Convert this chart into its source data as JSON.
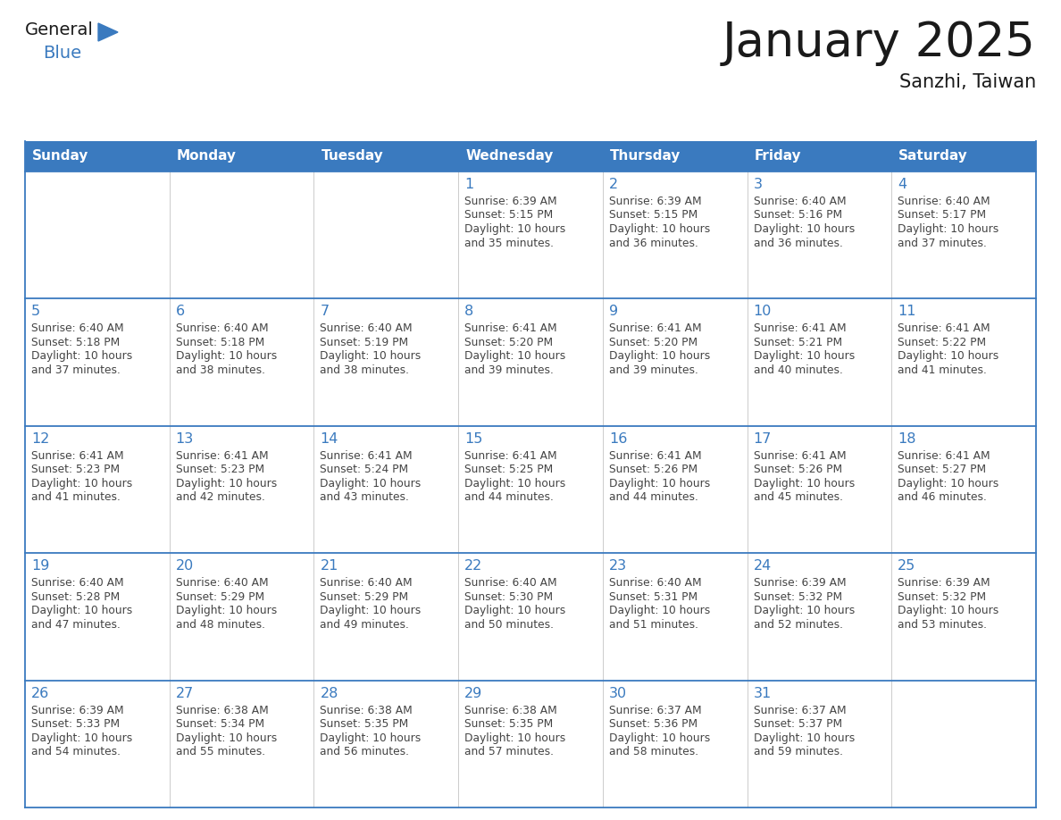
{
  "title": "January 2025",
  "subtitle": "Sanzhi, Taiwan",
  "header_color": "#3a7abf",
  "header_text_color": "#ffffff",
  "grid_line_color": "#3a7abf",
  "day_headers": [
    "Sunday",
    "Monday",
    "Tuesday",
    "Wednesday",
    "Thursday",
    "Friday",
    "Saturday"
  ],
  "title_color": "#1a1a1a",
  "subtitle_color": "#1a1a1a",
  "day_num_color": "#3a7abf",
  "text_color": "#444444",
  "calendar": [
    [
      null,
      null,
      null,
      {
        "day": 1,
        "sunrise": "6:39 AM",
        "sunset": "5:15 PM",
        "daylight": "10 hours and 35 minutes."
      },
      {
        "day": 2,
        "sunrise": "6:39 AM",
        "sunset": "5:15 PM",
        "daylight": "10 hours and 36 minutes."
      },
      {
        "day": 3,
        "sunrise": "6:40 AM",
        "sunset": "5:16 PM",
        "daylight": "10 hours and 36 minutes."
      },
      {
        "day": 4,
        "sunrise": "6:40 AM",
        "sunset": "5:17 PM",
        "daylight": "10 hours and 37 minutes."
      }
    ],
    [
      {
        "day": 5,
        "sunrise": "6:40 AM",
        "sunset": "5:18 PM",
        "daylight": "10 hours and 37 minutes."
      },
      {
        "day": 6,
        "sunrise": "6:40 AM",
        "sunset": "5:18 PM",
        "daylight": "10 hours and 38 minutes."
      },
      {
        "day": 7,
        "sunrise": "6:40 AM",
        "sunset": "5:19 PM",
        "daylight": "10 hours and 38 minutes."
      },
      {
        "day": 8,
        "sunrise": "6:41 AM",
        "sunset": "5:20 PM",
        "daylight": "10 hours and 39 minutes."
      },
      {
        "day": 9,
        "sunrise": "6:41 AM",
        "sunset": "5:20 PM",
        "daylight": "10 hours and 39 minutes."
      },
      {
        "day": 10,
        "sunrise": "6:41 AM",
        "sunset": "5:21 PM",
        "daylight": "10 hours and 40 minutes."
      },
      {
        "day": 11,
        "sunrise": "6:41 AM",
        "sunset": "5:22 PM",
        "daylight": "10 hours and 41 minutes."
      }
    ],
    [
      {
        "day": 12,
        "sunrise": "6:41 AM",
        "sunset": "5:23 PM",
        "daylight": "10 hours and 41 minutes."
      },
      {
        "day": 13,
        "sunrise": "6:41 AM",
        "sunset": "5:23 PM",
        "daylight": "10 hours and 42 minutes."
      },
      {
        "day": 14,
        "sunrise": "6:41 AM",
        "sunset": "5:24 PM",
        "daylight": "10 hours and 43 minutes."
      },
      {
        "day": 15,
        "sunrise": "6:41 AM",
        "sunset": "5:25 PM",
        "daylight": "10 hours and 44 minutes."
      },
      {
        "day": 16,
        "sunrise": "6:41 AM",
        "sunset": "5:26 PM",
        "daylight": "10 hours and 44 minutes."
      },
      {
        "day": 17,
        "sunrise": "6:41 AM",
        "sunset": "5:26 PM",
        "daylight": "10 hours and 45 minutes."
      },
      {
        "day": 18,
        "sunrise": "6:41 AM",
        "sunset": "5:27 PM",
        "daylight": "10 hours and 46 minutes."
      }
    ],
    [
      {
        "day": 19,
        "sunrise": "6:40 AM",
        "sunset": "5:28 PM",
        "daylight": "10 hours and 47 minutes."
      },
      {
        "day": 20,
        "sunrise": "6:40 AM",
        "sunset": "5:29 PM",
        "daylight": "10 hours and 48 minutes."
      },
      {
        "day": 21,
        "sunrise": "6:40 AM",
        "sunset": "5:29 PM",
        "daylight": "10 hours and 49 minutes."
      },
      {
        "day": 22,
        "sunrise": "6:40 AM",
        "sunset": "5:30 PM",
        "daylight": "10 hours and 50 minutes."
      },
      {
        "day": 23,
        "sunrise": "6:40 AM",
        "sunset": "5:31 PM",
        "daylight": "10 hours and 51 minutes."
      },
      {
        "day": 24,
        "sunrise": "6:39 AM",
        "sunset": "5:32 PM",
        "daylight": "10 hours and 52 minutes."
      },
      {
        "day": 25,
        "sunrise": "6:39 AM",
        "sunset": "5:32 PM",
        "daylight": "10 hours and 53 minutes."
      }
    ],
    [
      {
        "day": 26,
        "sunrise": "6:39 AM",
        "sunset": "5:33 PM",
        "daylight": "10 hours and 54 minutes."
      },
      {
        "day": 27,
        "sunrise": "6:38 AM",
        "sunset": "5:34 PM",
        "daylight": "10 hours and 55 minutes."
      },
      {
        "day": 28,
        "sunrise": "6:38 AM",
        "sunset": "5:35 PM",
        "daylight": "10 hours and 56 minutes."
      },
      {
        "day": 29,
        "sunrise": "6:38 AM",
        "sunset": "5:35 PM",
        "daylight": "10 hours and 57 minutes."
      },
      {
        "day": 30,
        "sunrise": "6:37 AM",
        "sunset": "5:36 PM",
        "daylight": "10 hours and 58 minutes."
      },
      {
        "day": 31,
        "sunrise": "6:37 AM",
        "sunset": "5:37 PM",
        "daylight": "10 hours and 59 minutes."
      },
      null
    ]
  ]
}
